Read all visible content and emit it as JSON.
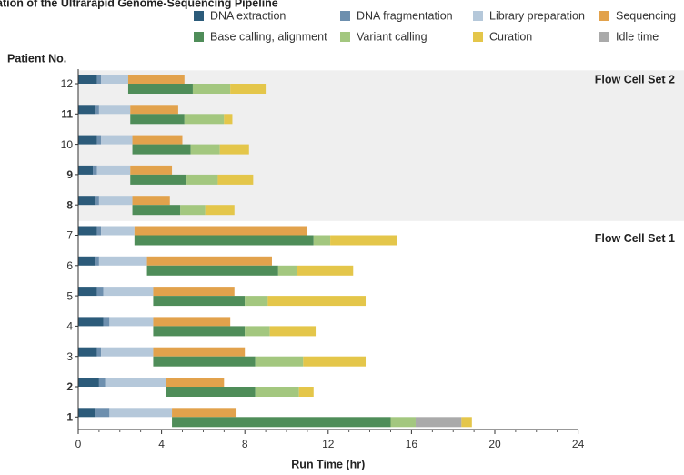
{
  "chart_data": {
    "type": "bar",
    "orientation": "horizontal-stacked-gantt",
    "title": "ation of the Ultrarapid Genome-Sequencing Pipeline",
    "xlabel": "Run Time (hr)",
    "ylabel": "Patient No.",
    "xlim": [
      0,
      24
    ],
    "xticks": [
      0,
      4,
      8,
      12,
      16,
      20,
      24
    ],
    "legend_position": "top",
    "grid": false,
    "legend": [
      {
        "key": "dna_extraction",
        "label": "DNA extraction",
        "color": "#2c5b7a"
      },
      {
        "key": "dna_fragmentation",
        "label": "DNA fragmentation",
        "color": "#6d8fae"
      },
      {
        "key": "library_preparation",
        "label": "Library preparation",
        "color": "#b5c8da"
      },
      {
        "key": "sequencing",
        "label": "Sequencing",
        "color": "#e2a24c"
      },
      {
        "key": "base_calling",
        "label": "Base calling, alignment",
        "color": "#4f8d59"
      },
      {
        "key": "variant_calling",
        "label": "Variant calling",
        "color": "#a3c77f"
      },
      {
        "key": "curation",
        "label": "Curation",
        "color": "#e4c64a"
      },
      {
        "key": "idle_time",
        "label": "Idle time",
        "color": "#aaaaaa"
      }
    ],
    "groups": [
      {
        "label": "Flow Cell Set 2",
        "patients": [
          "12",
          "11",
          "10",
          "9",
          "8"
        ],
        "shaded": true
      },
      {
        "label": "Flow Cell Set 1",
        "patients": [
          "7",
          "6",
          "5",
          "4",
          "3",
          "2",
          "1"
        ],
        "shaded": false
      }
    ],
    "patients": [
      {
        "label": "12",
        "highlight": false,
        "top": [
          [
            "dna_extraction",
            0.0,
            0.9
          ],
          [
            "dna_fragmentation",
            0.9,
            1.1
          ],
          [
            "library_preparation",
            1.1,
            2.4
          ],
          [
            "sequencing",
            2.4,
            5.1
          ]
        ],
        "bottom": [
          [
            "base_calling",
            2.4,
            5.5
          ],
          [
            "variant_calling",
            5.5,
            7.3
          ],
          [
            "curation",
            7.3,
            9.0
          ]
        ]
      },
      {
        "label": "11",
        "highlight": true,
        "top": [
          [
            "dna_extraction",
            0.0,
            0.8
          ],
          [
            "dna_fragmentation",
            0.8,
            1.0
          ],
          [
            "library_preparation",
            1.0,
            2.5
          ],
          [
            "sequencing",
            2.5,
            4.8
          ]
        ],
        "bottom": [
          [
            "base_calling",
            2.5,
            5.1
          ],
          [
            "variant_calling",
            5.1,
            7.0
          ],
          [
            "curation",
            7.0,
            7.4
          ]
        ]
      },
      {
        "label": "10",
        "highlight": false,
        "top": [
          [
            "dna_extraction",
            0.0,
            0.9
          ],
          [
            "dna_fragmentation",
            0.9,
            1.1
          ],
          [
            "library_preparation",
            1.1,
            2.6
          ],
          [
            "sequencing",
            2.6,
            5.0
          ]
        ],
        "bottom": [
          [
            "base_calling",
            2.6,
            5.4
          ],
          [
            "variant_calling",
            5.4,
            6.8
          ],
          [
            "curation",
            6.8,
            8.2
          ]
        ]
      },
      {
        "label": "9",
        "highlight": true,
        "top": [
          [
            "dna_extraction",
            0.0,
            0.7
          ],
          [
            "dna_fragmentation",
            0.7,
            0.9
          ],
          [
            "library_preparation",
            0.9,
            2.5
          ],
          [
            "sequencing",
            2.5,
            4.5
          ]
        ],
        "bottom": [
          [
            "base_calling",
            2.5,
            5.2
          ],
          [
            "variant_calling",
            5.2,
            6.7
          ],
          [
            "curation",
            6.7,
            8.4
          ]
        ]
      },
      {
        "label": "8",
        "highlight": true,
        "top": [
          [
            "dna_extraction",
            0.0,
            0.8
          ],
          [
            "dna_fragmentation",
            0.8,
            1.0
          ],
          [
            "library_preparation",
            1.0,
            2.6
          ],
          [
            "sequencing",
            2.6,
            4.4
          ]
        ],
        "bottom": [
          [
            "base_calling",
            2.6,
            4.9
          ],
          [
            "variant_calling",
            4.9,
            6.1
          ],
          [
            "curation",
            6.1,
            7.5
          ]
        ]
      },
      {
        "label": "7",
        "highlight": false,
        "top": [
          [
            "dna_extraction",
            0.0,
            0.9
          ],
          [
            "dna_fragmentation",
            0.9,
            1.1
          ],
          [
            "library_preparation",
            1.1,
            2.7
          ],
          [
            "sequencing",
            2.7,
            11.0
          ]
        ],
        "bottom": [
          [
            "base_calling",
            2.7,
            11.3
          ],
          [
            "variant_calling",
            11.3,
            12.1
          ],
          [
            "curation",
            12.1,
            15.3
          ]
        ]
      },
      {
        "label": "6",
        "highlight": false,
        "top": [
          [
            "dna_extraction",
            0.0,
            0.8
          ],
          [
            "dna_fragmentation",
            0.8,
            1.0
          ],
          [
            "library_preparation",
            1.0,
            3.3
          ],
          [
            "sequencing",
            3.3,
            9.3
          ]
        ],
        "bottom": [
          [
            "base_calling",
            3.3,
            9.6
          ],
          [
            "variant_calling",
            9.6,
            10.5
          ],
          [
            "curation",
            10.5,
            13.2
          ]
        ]
      },
      {
        "label": "5",
        "highlight": false,
        "top": [
          [
            "dna_extraction",
            0.0,
            0.9
          ],
          [
            "dna_fragmentation",
            0.9,
            1.2
          ],
          [
            "library_preparation",
            1.2,
            3.6
          ],
          [
            "sequencing",
            3.6,
            7.5
          ]
        ],
        "bottom": [
          [
            "base_calling",
            3.6,
            8.0
          ],
          [
            "variant_calling",
            8.0,
            9.1
          ],
          [
            "curation",
            9.1,
            13.8
          ]
        ]
      },
      {
        "label": "4",
        "highlight": false,
        "top": [
          [
            "dna_extraction",
            0.0,
            1.2
          ],
          [
            "dna_fragmentation",
            1.2,
            1.5
          ],
          [
            "library_preparation",
            1.5,
            3.6
          ],
          [
            "sequencing",
            3.6,
            7.3
          ]
        ],
        "bottom": [
          [
            "base_calling",
            3.6,
            8.0
          ],
          [
            "variant_calling",
            8.0,
            9.2
          ],
          [
            "curation",
            9.2,
            11.4
          ]
        ]
      },
      {
        "label": "3",
        "highlight": false,
        "top": [
          [
            "dna_extraction",
            0.0,
            0.9
          ],
          [
            "dna_fragmentation",
            0.9,
            1.1
          ],
          [
            "library_preparation",
            1.1,
            3.6
          ],
          [
            "sequencing",
            3.6,
            8.0
          ]
        ],
        "bottom": [
          [
            "base_calling",
            3.6,
            8.5
          ],
          [
            "variant_calling",
            8.5,
            10.8
          ],
          [
            "curation",
            10.8,
            13.8
          ]
        ]
      },
      {
        "label": "2",
        "highlight": true,
        "top": [
          [
            "dna_extraction",
            0.0,
            1.0
          ],
          [
            "dna_fragmentation",
            1.0,
            1.3
          ],
          [
            "library_preparation",
            1.3,
            4.2
          ],
          [
            "sequencing",
            4.2,
            7.0
          ]
        ],
        "bottom": [
          [
            "base_calling",
            4.2,
            8.5
          ],
          [
            "variant_calling",
            8.5,
            10.6
          ],
          [
            "curation",
            10.6,
            11.3
          ]
        ]
      },
      {
        "label": "1",
        "highlight": true,
        "top": [
          [
            "dna_extraction",
            0.0,
            0.8
          ],
          [
            "dna_fragmentation",
            0.8,
            1.5
          ],
          [
            "library_preparation",
            1.5,
            4.5
          ],
          [
            "sequencing",
            4.5,
            7.6
          ]
        ],
        "bottom": [
          [
            "base_calling",
            4.5,
            15.0
          ],
          [
            "variant_calling",
            15.0,
            16.2
          ],
          [
            "idle_time",
            16.2,
            18.4
          ],
          [
            "curation",
            18.4,
            18.9
          ]
        ]
      }
    ],
    "colors": {
      "highlight_label": "#b8372a",
      "normal_label": "#333333",
      "shade": "#efefef",
      "axis": "#333333"
    }
  }
}
